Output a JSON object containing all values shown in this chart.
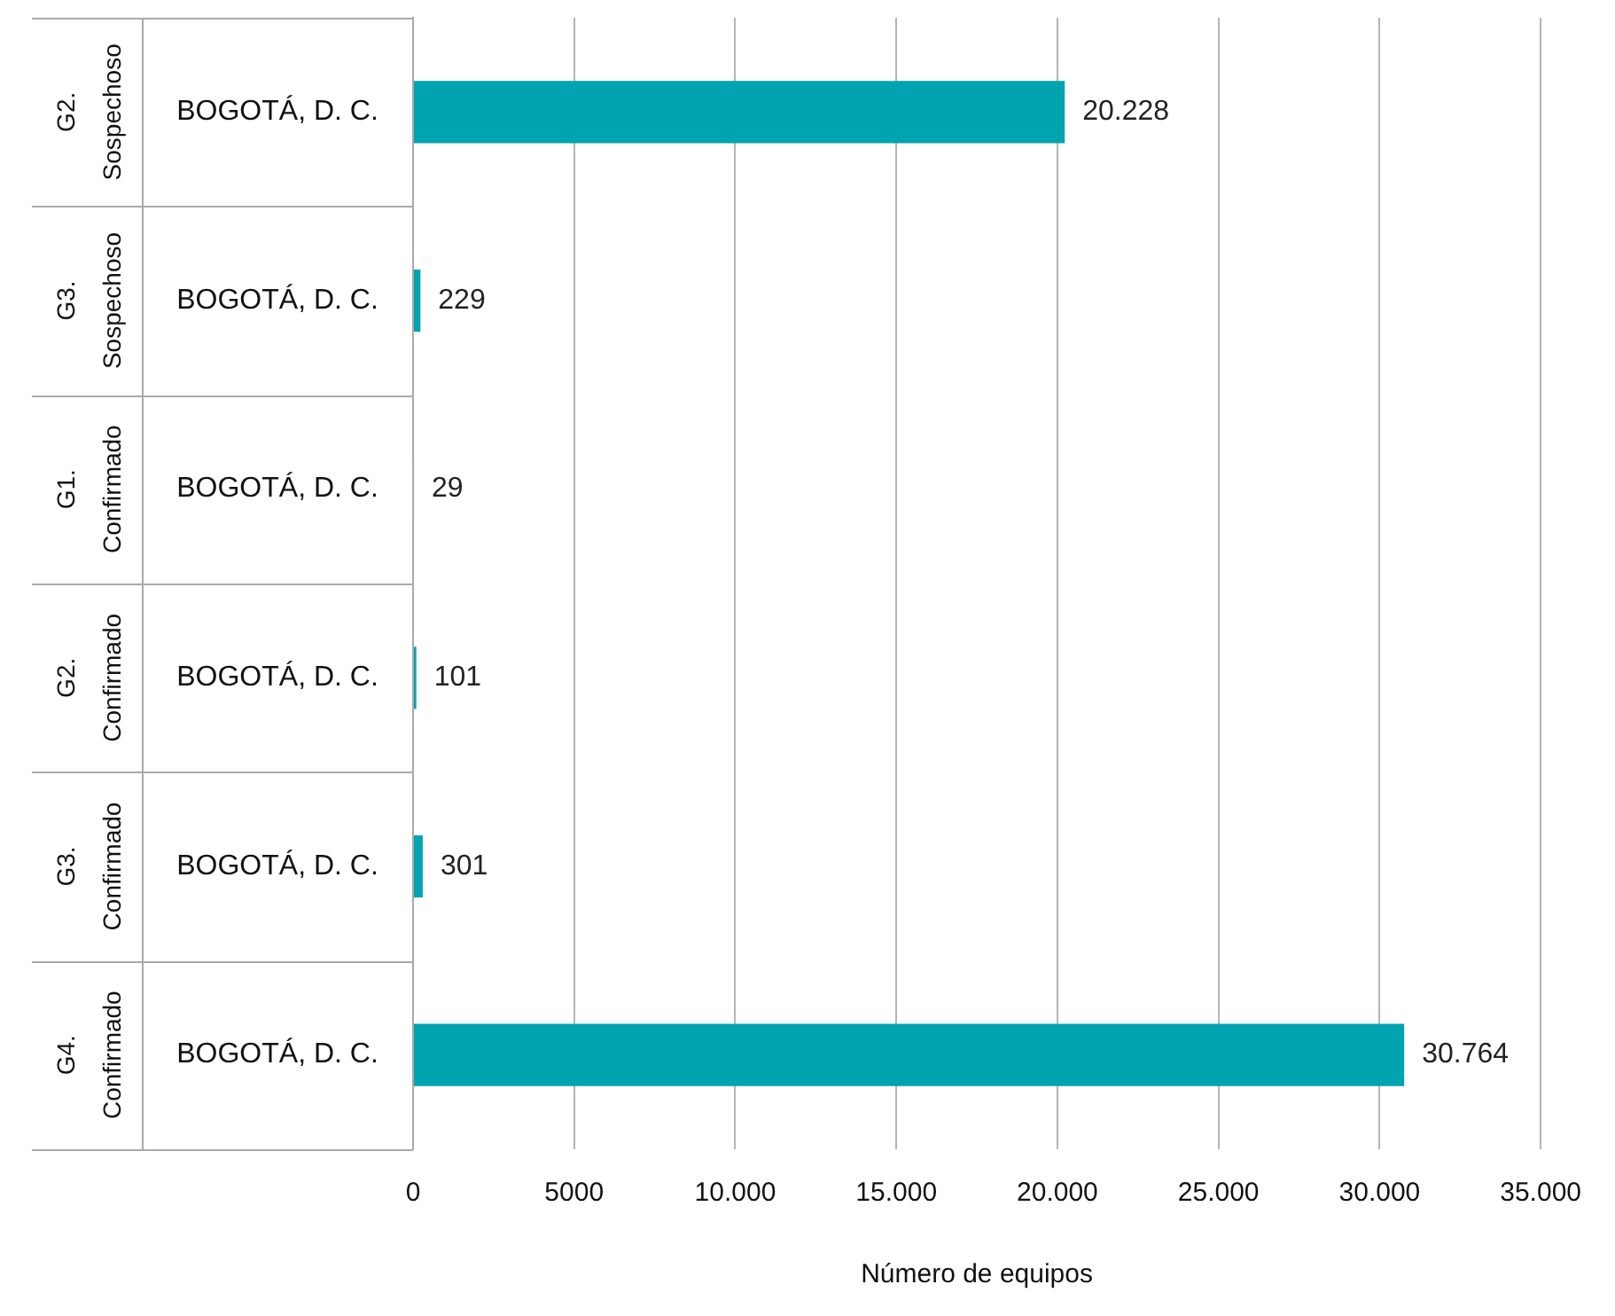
{
  "chart_data": {
    "type": "bar",
    "orientation": "horizontal",
    "xlabel": "Número de equipos",
    "categories": [
      "BOGOTÁ, D. C.",
      "BOGOTÁ, D. C.",
      "BOGOTÁ, D. C.",
      "BOGOTÁ, D. C.",
      "BOGOTÁ, D. C.",
      "BOGOTÁ, D. C."
    ],
    "y2_categories": [
      "G2. Sospechoso",
      "G3. Sospechoso",
      "G1. Confirmado",
      "G2. Confirmado",
      "G3. Confirmado",
      "G4. Confirmado"
    ],
    "values": [
      20228,
      229,
      29,
      101,
      301,
      30764
    ],
    "value_labels": [
      "20.228",
      "229",
      "29",
      "101",
      "301",
      "30.764"
    ],
    "color": "#00a3b0",
    "xlim": [
      0,
      35000
    ],
    "xticks": [
      0,
      5000,
      {
        "value": 10000,
        "label": "10.000"
      },
      {
        "value": 15000,
        "label": "15.000"
      },
      {
        "value": 20000,
        "label": "20.000"
      },
      {
        "value": 25000,
        "label": "25.000"
      },
      {
        "value": 30000,
        "label": "30.000"
      },
      {
        "value": 35000,
        "label": "35.000"
      }
    ],
    "grid": "x",
    "legend": false
  }
}
